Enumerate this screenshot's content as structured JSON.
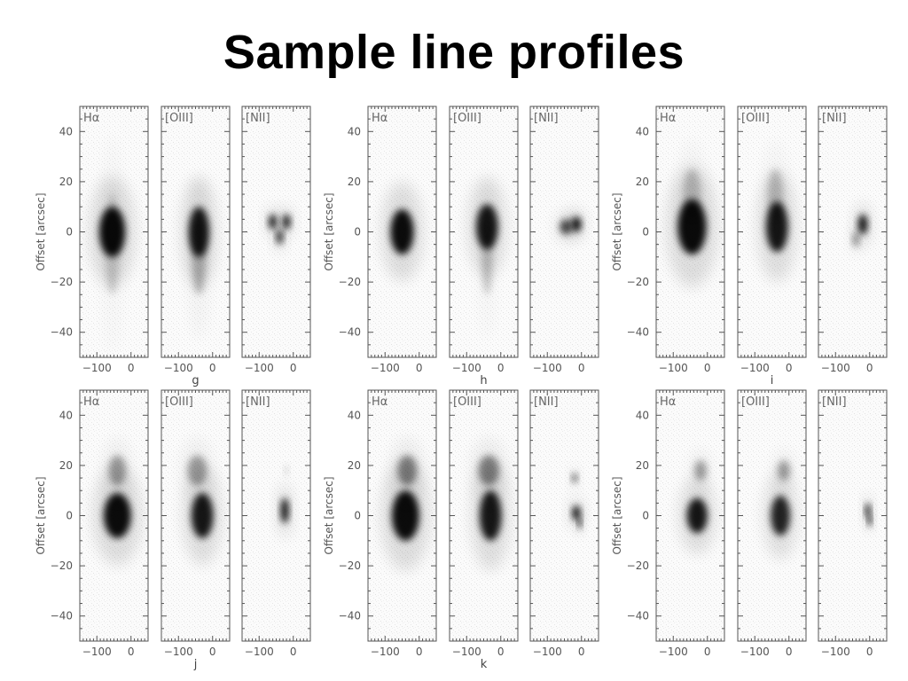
{
  "slide": {
    "title": "Sample line profiles"
  },
  "figure": {
    "y_axis_title": "Offset [arcsec]",
    "y_ticks": [
      "40",
      "20",
      "0",
      "−20",
      "−40"
    ],
    "y_tick_values": [
      40,
      20,
      0,
      -20,
      -40
    ],
    "x_ticks": [
      "−100",
      "0"
    ],
    "x_tick_values": [
      -100,
      0
    ],
    "ylim": [
      -50,
      50
    ],
    "xlim": [
      -150,
      50
    ],
    "line_labels": [
      "Hα",
      "[OIII]",
      "[NII]"
    ],
    "groups": [
      {
        "row": 0,
        "col": 0,
        "caption": "g"
      },
      {
        "row": 0,
        "col": 1,
        "caption": "h"
      },
      {
        "row": 0,
        "col": 2,
        "caption": "i"
      },
      {
        "row": 1,
        "col": 0,
        "caption": "j"
      },
      {
        "row": 1,
        "col": 1,
        "caption": "k"
      },
      {
        "row": 1,
        "col": 2,
        "caption": ""
      }
    ],
    "blobs": [
      [
        [
          {
            "x": -55,
            "y": 0,
            "rx": 38,
            "ry": 10,
            "o": 0.95
          },
          {
            "x": -55,
            "y": -5,
            "rx": 20,
            "ry": 20,
            "o": 0.15
          }
        ],
        [
          {
            "x": -40,
            "y": 0,
            "rx": 30,
            "ry": 10,
            "o": 0.9
          },
          {
            "x": -40,
            "y": -10,
            "rx": 20,
            "ry": 15,
            "o": 0.25
          }
        ],
        [
          {
            "x": -60,
            "y": 4,
            "rx": 12,
            "ry": 3,
            "o": 0.85
          },
          {
            "x": -20,
            "y": 4,
            "rx": 12,
            "ry": 3,
            "o": 0.85
          },
          {
            "x": -40,
            "y": -2,
            "rx": 10,
            "ry": 3,
            "o": 0.8
          }
        ]
      ],
      [
        [
          {
            "x": -50,
            "y": 0,
            "rx": 34,
            "ry": 9,
            "o": 0.95
          }
        ],
        [
          {
            "x": -40,
            "y": 2,
            "rx": 32,
            "ry": 9,
            "o": 0.9
          },
          {
            "x": -40,
            "y": -10,
            "rx": 15,
            "ry": 15,
            "o": 0.2
          }
        ],
        [
          {
            "x": -45,
            "y": 2,
            "rx": 18,
            "ry": 3,
            "o": 0.7
          },
          {
            "x": -15,
            "y": 3,
            "rx": 14,
            "ry": 3,
            "o": 0.95
          }
        ]
      ],
      [
        [
          {
            "x": -45,
            "y": 2,
            "rx": 42,
            "ry": 11,
            "o": 0.95
          },
          {
            "x": -45,
            "y": 15,
            "rx": 25,
            "ry": 10,
            "o": 0.2
          }
        ],
        [
          {
            "x": -35,
            "y": 2,
            "rx": 32,
            "ry": 10,
            "o": 0.9
          },
          {
            "x": -40,
            "y": 15,
            "rx": 22,
            "ry": 10,
            "o": 0.2
          }
        ],
        [
          {
            "x": -20,
            "y": 3,
            "rx": 14,
            "ry": 4,
            "o": 0.9
          },
          {
            "x": -40,
            "y": -3,
            "rx": 10,
            "ry": 3,
            "o": 0.4
          }
        ]
      ],
      [
        [
          {
            "x": -40,
            "y": 0,
            "rx": 40,
            "ry": 9,
            "o": 0.95
          },
          {
            "x": -40,
            "y": 18,
            "rx": 25,
            "ry": 6,
            "o": 0.35
          }
        ],
        [
          {
            "x": -30,
            "y": 0,
            "rx": 32,
            "ry": 9,
            "o": 0.9
          },
          {
            "x": -45,
            "y": 18,
            "rx": 28,
            "ry": 6,
            "o": 0.35
          }
        ],
        [
          {
            "x": -25,
            "y": 2,
            "rx": 12,
            "ry": 5,
            "o": 0.9
          },
          {
            "x": -20,
            "y": 18,
            "rx": 6,
            "ry": 2,
            "o": 0.15
          }
        ]
      ],
      [
        [
          {
            "x": -40,
            "y": 0,
            "rx": 40,
            "ry": 10,
            "o": 0.95
          },
          {
            "x": -35,
            "y": 18,
            "rx": 28,
            "ry": 6,
            "o": 0.45
          }
        ],
        [
          {
            "x": -30,
            "y": 0,
            "rx": 32,
            "ry": 10,
            "o": 0.9
          },
          {
            "x": -35,
            "y": 18,
            "rx": 30,
            "ry": 6,
            "o": 0.45
          }
        ],
        [
          {
            "x": -15,
            "y": 1,
            "rx": 12,
            "ry": 3,
            "o": 0.9
          },
          {
            "x": -20,
            "y": 15,
            "rx": 8,
            "ry": 2,
            "o": 0.6
          },
          {
            "x": -5,
            "y": -3,
            "rx": 6,
            "ry": 2,
            "o": 0.9
          }
        ]
      ],
      [
        [
          {
            "x": -30,
            "y": 0,
            "rx": 30,
            "ry": 7,
            "o": 0.9
          },
          {
            "x": -20,
            "y": 18,
            "rx": 18,
            "ry": 4,
            "o": 0.35
          }
        ],
        [
          {
            "x": -25,
            "y": 0,
            "rx": 28,
            "ry": 8,
            "o": 0.85
          },
          {
            "x": -15,
            "y": 18,
            "rx": 18,
            "ry": 4,
            "o": 0.35
          }
        ],
        [
          {
            "x": -5,
            "y": 2,
            "rx": 8,
            "ry": 3,
            "o": 0.85
          },
          {
            "x": 0,
            "y": -2,
            "rx": 6,
            "ry": 2,
            "o": 0.95
          }
        ]
      ]
    ]
  }
}
